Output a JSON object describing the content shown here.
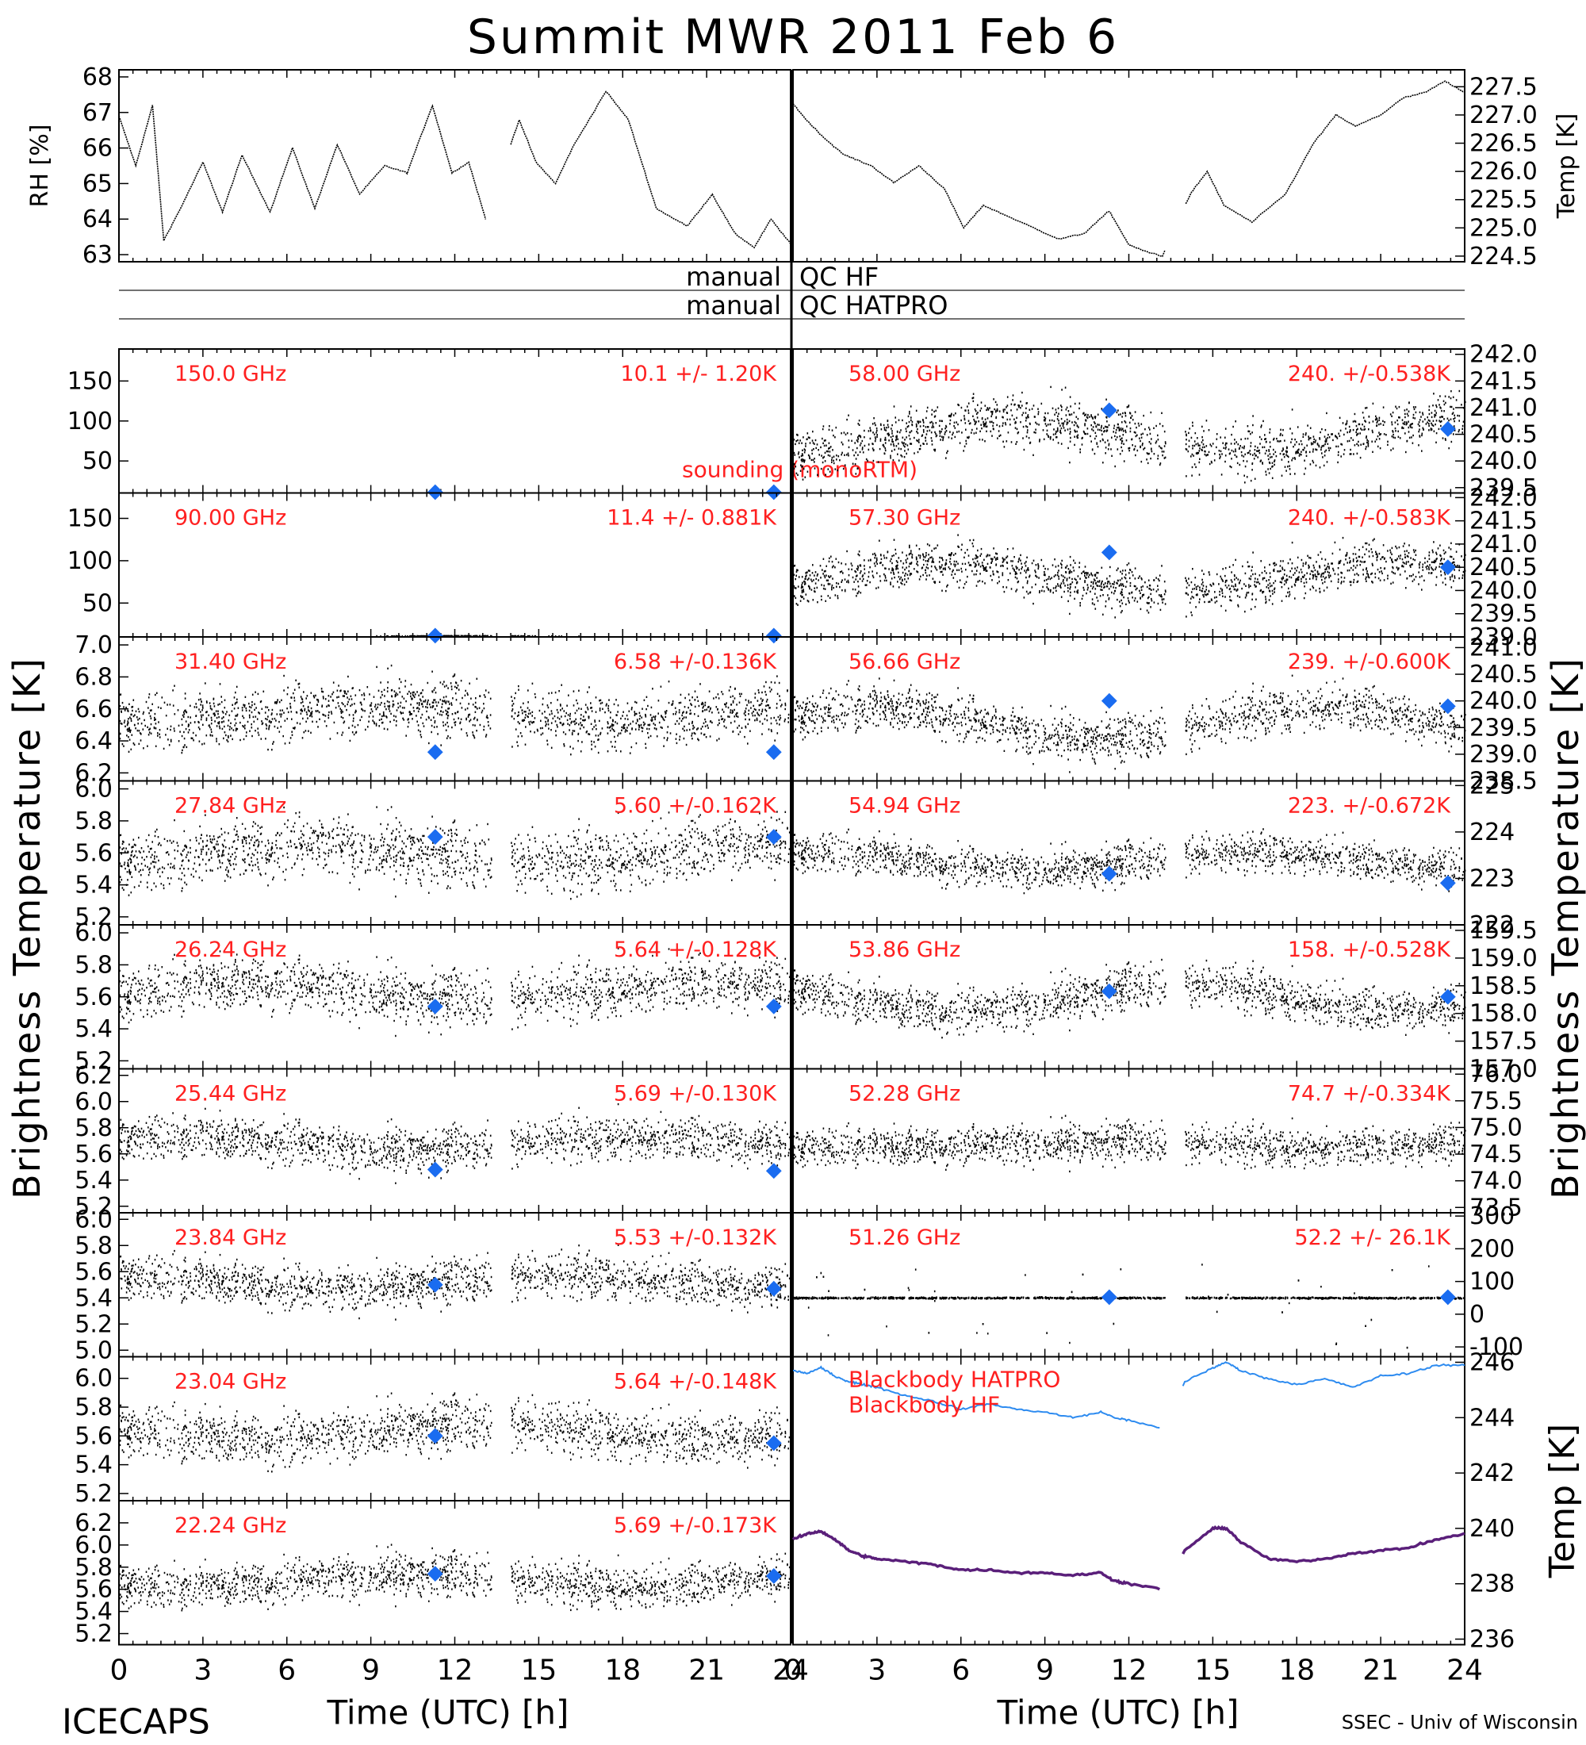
{
  "title": "Summit MWR 2011 Feb  6",
  "footer": {
    "left": "ICECAPS",
    "right": "SSEC - Univ of Wisconsin"
  },
  "x_axis": {
    "label": "Time (UTC) [h]",
    "ticks": [
      0,
      3,
      6,
      9,
      12,
      15,
      18,
      21,
      24
    ],
    "range": [
      0,
      24
    ]
  },
  "left_axis_label": "Brightness Temperature [K]",
  "right_axis_label": "Brightness Temperature [K]",
  "qc": {
    "hf_left": "manual",
    "hf_right": "QC HF",
    "hatpro_left": "manual",
    "hatpro_right": "QC HATPRO"
  },
  "colors": {
    "data": "#000000",
    "marker": "#1a6cf0",
    "annotation": "#ff2020",
    "hatpro": "#2d8bf0",
    "hf": "#5a1f7a"
  },
  "chart_data": [
    {
      "id": "rh",
      "type": "line",
      "ylabel": "RH [%]",
      "ylim": [
        62.8,
        68.2
      ],
      "ticks": [
        63,
        64,
        65,
        66,
        67,
        68
      ],
      "tick_labels": [
        "63",
        "64",
        "65",
        "66",
        "67",
        "68"
      ],
      "x": [
        0,
        0.6,
        1.2,
        1.6,
        2.2,
        3,
        3.7,
        4.4,
        5.4,
        6.2,
        7,
        7.8,
        8.6,
        9.5,
        10.3,
        11.2,
        11.9,
        12.5,
        13.1,
        14.3,
        14.9,
        15.6,
        16.2,
        17.4,
        18.2,
        19.2,
        20.3,
        21.2,
        22,
        22.7,
        23.3,
        24
      ],
      "y": [
        66.9,
        65.5,
        67.2,
        63.4,
        64.3,
        65.6,
        64.2,
        65.8,
        64.2,
        66.0,
        64.3,
        66.1,
        64.7,
        65.5,
        65.3,
        67.2,
        65.3,
        65.6,
        64.0,
        66.8,
        65.6,
        65.0,
        66.0,
        67.6,
        66.8,
        64.3,
        63.8,
        64.7,
        63.6,
        63.2,
        64.0,
        63.3
      ],
      "gaps": [
        [
          13.2,
          13.9
        ]
      ]
    },
    {
      "id": "temp",
      "type": "line",
      "ylabel": "Temp [K]",
      "ylim": [
        224.4,
        227.8
      ],
      "ticks": [
        224.5,
        225,
        225.5,
        226,
        226.5,
        227,
        227.5
      ],
      "tick_labels": [
        "224.5",
        "225.0",
        "225.5",
        "226.0",
        "226.5",
        "227.0",
        "227.5"
      ],
      "x": [
        0,
        0.5,
        1.1,
        1.8,
        2.8,
        3.6,
        4.5,
        5.4,
        6.1,
        6.8,
        7.7,
        8.6,
        9.5,
        10.4,
        11.3,
        12,
        12.5,
        13.2,
        14.2,
        14.8,
        15.4,
        16.4,
        17.6,
        18.6,
        19.4,
        20.1,
        21,
        21.8,
        22.6,
        23.3,
        24
      ],
      "y": [
        227.2,
        226.9,
        226.6,
        226.3,
        226.1,
        225.8,
        226.1,
        225.7,
        225.0,
        225.4,
        225.2,
        225.0,
        224.8,
        224.9,
        225.3,
        224.7,
        224.6,
        224.5,
        225.6,
        226.0,
        225.4,
        225.1,
        225.6,
        226.5,
        227.0,
        226.8,
        227.0,
        227.3,
        227.4,
        227.6,
        227.4
      ],
      "gaps": [
        [
          13.3,
          14.0
        ]
      ]
    },
    {
      "id": "150",
      "side": "left",
      "type": "scatter",
      "label": "150.0 GHz",
      "stat": "10.1 +/-  1.20K",
      "extra_label": "sounding (monoRTM)",
      "ylim": [
        10,
        190
      ],
      "ticks": [
        50,
        100,
        150
      ],
      "tick_labels": [
        "50",
        "100",
        "150"
      ],
      "base": 11,
      "amp": 0.6,
      "noise": 0.6,
      "markers": [
        [
          11.3,
          11
        ],
        [
          23.4,
          11
        ]
      ]
    },
    {
      "id": "90",
      "side": "left",
      "type": "scatter",
      "label": "90.00 GHz",
      "stat": "11.4 +/- 0.881K",
      "ylim": [
        10,
        180
      ],
      "ticks": [
        50,
        100,
        150
      ],
      "tick_labels": [
        "50",
        "100",
        "150"
      ],
      "base": 11.4,
      "amp": 0.6,
      "noise": 0.6,
      "markers": [
        [
          11.3,
          11.5
        ],
        [
          23.4,
          11.5
        ]
      ]
    },
    {
      "id": "31.40",
      "side": "left",
      "type": "scatter",
      "label": "31.40 GHz",
      "stat": "6.58 +/-0.136K",
      "ylim": [
        6.15,
        7.05
      ],
      "ticks": [
        6.2,
        6.4,
        6.6,
        6.8,
        7.0
      ],
      "tick_labels": [
        "6.2",
        "6.4",
        "6.6",
        "6.8",
        "7.0"
      ],
      "base": 6.58,
      "amp": 0.05,
      "noise": 0.3,
      "markers": [
        [
          11.3,
          6.33
        ],
        [
          23.4,
          6.33
        ]
      ]
    },
    {
      "id": "27.84",
      "side": "left",
      "type": "scatter",
      "label": "27.84 GHz",
      "stat": "5.60 +/-0.162K",
      "ylim": [
        5.15,
        6.05
      ],
      "ticks": [
        5.2,
        5.4,
        5.6,
        5.8,
        6.0
      ],
      "tick_labels": [
        "5.2",
        "5.4",
        "5.6",
        "5.8",
        "6.0"
      ],
      "base": 5.6,
      "amp": 0.05,
      "noise": 0.32,
      "markers": [
        [
          11.3,
          5.7
        ],
        [
          23.4,
          5.7
        ]
      ]
    },
    {
      "id": "26.24",
      "side": "left",
      "type": "scatter",
      "label": "26.24 GHz",
      "stat": "5.64 +/-0.128K",
      "ylim": [
        5.15,
        6.05
      ],
      "ticks": [
        5.2,
        5.4,
        5.6,
        5.8,
        6.0
      ],
      "tick_labels": [
        "5.2",
        "5.4",
        "5.6",
        "5.8",
        "6.0"
      ],
      "base": 5.64,
      "amp": 0.05,
      "noise": 0.28,
      "markers": [
        [
          11.3,
          5.54
        ],
        [
          23.4,
          5.54
        ]
      ]
    },
    {
      "id": "25.44",
      "side": "left",
      "type": "scatter",
      "label": "25.44 GHz",
      "stat": "5.69 +/-0.130K",
      "ylim": [
        5.15,
        6.25
      ],
      "ticks": [
        5.2,
        5.4,
        5.6,
        5.8,
        6.0,
        6.2
      ],
      "tick_labels": [
        "5.2",
        "5.4",
        "5.6",
        "5.8",
        "6.0",
        "6.2"
      ],
      "base": 5.69,
      "amp": 0.05,
      "noise": 0.28,
      "markers": [
        [
          11.3,
          5.48
        ],
        [
          23.4,
          5.47
        ]
      ]
    },
    {
      "id": "23.84",
      "side": "left",
      "type": "scatter",
      "label": "23.84 GHz",
      "stat": "5.53 +/-0.132K",
      "ylim": [
        4.95,
        6.05
      ],
      "ticks": [
        5.0,
        5.2,
        5.4,
        5.6,
        5.8,
        6.0
      ],
      "tick_labels": [
        "5.0",
        "5.2",
        "5.4",
        "5.6",
        "5.8",
        "6.0"
      ],
      "base": 5.53,
      "amp": 0.05,
      "noise": 0.28,
      "markers": [
        [
          11.3,
          5.5
        ],
        [
          23.4,
          5.47
        ]
      ]
    },
    {
      "id": "23.04",
      "side": "left",
      "type": "scatter",
      "label": "23.04 GHz",
      "stat": "5.64 +/-0.148K",
      "ylim": [
        5.15,
        6.15
      ],
      "ticks": [
        5.2,
        5.4,
        5.6,
        5.8,
        6.0
      ],
      "tick_labels": [
        "5.2",
        "5.4",
        "5.6",
        "5.8",
        "6.0"
      ],
      "base": 5.64,
      "amp": 0.06,
      "noise": 0.3,
      "markers": [
        [
          11.3,
          5.6
        ],
        [
          23.4,
          5.55
        ]
      ]
    },
    {
      "id": "22.24",
      "side": "left",
      "type": "scatter",
      "label": "22.24 GHz",
      "stat": "5.69 +/-0.173K",
      "ylim": [
        5.1,
        6.4
      ],
      "ticks": [
        5.2,
        5.4,
        5.6,
        5.8,
        6.0,
        6.2
      ],
      "tick_labels": [
        "5.2",
        "5.4",
        "5.6",
        "5.8",
        "6.0",
        "6.2"
      ],
      "base": 5.69,
      "amp": 0.06,
      "noise": 0.32,
      "markers": [
        [
          11.3,
          5.74
        ],
        [
          23.4,
          5.72
        ]
      ]
    },
    {
      "id": "58.00",
      "side": "right",
      "type": "scatter",
      "label": "58.00 GHz",
      "stat": "240. +/-0.538K",
      "ylim": [
        239.4,
        242.1
      ],
      "ticks": [
        239.5,
        240,
        240.5,
        241,
        241.5,
        242
      ],
      "tick_labels": [
        "239.5",
        "240.0",
        "240.5",
        "241.0",
        "241.5",
        "242.0"
      ],
      "base": 240.5,
      "amp": 0.3,
      "noise": 0.8,
      "markers": [
        [
          11.3,
          240.95
        ],
        [
          23.4,
          240.6
        ]
      ]
    },
    {
      "id": "57.30",
      "side": "right",
      "type": "scatter",
      "label": "57.30 GHz",
      "stat": "240. +/-0.583K",
      "ylim": [
        239,
        242.1
      ],
      "ticks": [
        239,
        239.5,
        240,
        240.5,
        241,
        241.5,
        242
      ],
      "tick_labels": [
        "239.0",
        "239.5",
        "240.0",
        "240.5",
        "241.0",
        "241.5",
        "242.0"
      ],
      "base": 240.3,
      "amp": 0.3,
      "noise": 0.8,
      "markers": [
        [
          11.3,
          240.82
        ],
        [
          23.4,
          240.5
        ]
      ]
    },
    {
      "id": "56.66",
      "side": "right",
      "type": "scatter",
      "label": "56.66 GHz",
      "stat": "239. +/-0.600K",
      "ylim": [
        238.5,
        241.2
      ],
      "ticks": [
        238.5,
        239,
        239.5,
        240,
        240.5,
        241
      ],
      "tick_labels": [
        "238.5",
        "239.0",
        "239.5",
        "240.0",
        "240.5",
        "241.0"
      ],
      "base": 239.6,
      "amp": 0.3,
      "noise": 0.7,
      "markers": [
        [
          11.3,
          240.0
        ],
        [
          23.4,
          239.9
        ]
      ]
    },
    {
      "id": "54.94",
      "side": "right",
      "type": "scatter",
      "label": "54.94 GHz",
      "stat": "223. +/-0.672K",
      "ylim": [
        222,
        225.1
      ],
      "ticks": [
        222,
        223,
        224,
        225
      ],
      "tick_labels": [
        "222",
        "223",
        "224",
        "225"
      ],
      "base": 223.4,
      "amp": 0.2,
      "noise": 0.7,
      "markers": [
        [
          11.3,
          223.1
        ],
        [
          23.4,
          222.9
        ]
      ]
    },
    {
      "id": "53.86",
      "side": "right",
      "type": "scatter",
      "label": "53.86 GHz",
      "stat": "158. +/-0.528K",
      "ylim": [
        157,
        159.6
      ],
      "ticks": [
        157,
        157.5,
        158,
        158.5,
        159,
        159.5
      ],
      "tick_labels": [
        "157.0",
        "157.5",
        "158.0",
        "158.5",
        "159.0",
        "159.5"
      ],
      "base": 158.3,
      "amp": 0.25,
      "noise": 0.65,
      "markers": [
        [
          11.3,
          158.4
        ],
        [
          23.4,
          158.3
        ]
      ]
    },
    {
      "id": "52.28",
      "side": "right",
      "type": "scatter",
      "label": "52.28 GHz",
      "stat": "74.7 +/-0.334K",
      "ylim": [
        73.4,
        76.1
      ],
      "ticks": [
        73.5,
        74,
        74.5,
        75,
        75.5,
        76
      ],
      "tick_labels": [
        "73.5",
        "74.0",
        "74.5",
        "75.0",
        "75.5",
        "76.0"
      ],
      "base": 74.7,
      "amp": 0.05,
      "noise": 0.6,
      "markers": []
    },
    {
      "id": "51.26",
      "side": "right",
      "type": "scatter",
      "label": "51.26 GHz",
      "stat": "52.2 +/- 26.1K",
      "ylim": [
        -130,
        310
      ],
      "ticks": [
        -100,
        0,
        100,
        200,
        300
      ],
      "tick_labels": [
        "-100",
        "0",
        "100",
        "200",
        "300"
      ],
      "base": 52.2,
      "amp": 0,
      "noise": 4,
      "outliers": true,
      "markers": [
        [
          11.3,
          52
        ],
        [
          23.4,
          52
        ]
      ]
    },
    {
      "id": "blackbody",
      "side": "right",
      "type": "line",
      "ylabel": "Temp [K]",
      "ylim": [
        235.8,
        246.2
      ],
      "ticks": [
        236,
        238,
        240,
        242,
        244,
        246
      ],
      "tick_labels": [
        "236",
        "238",
        "240",
        "242",
        "244",
        "246"
      ],
      "series": [
        {
          "name": "Blackbody HATPRO",
          "color": "#2d8bf0",
          "x": [
            0,
            0.5,
            1,
            1.5,
            2,
            2.5,
            3,
            4,
            5,
            6,
            7,
            8,
            9,
            10,
            11,
            11.5,
            12,
            13.2,
            14,
            15,
            15.5,
            16,
            17,
            18,
            19,
            20,
            21,
            22,
            23,
            24
          ],
          "y": [
            245.7,
            245.6,
            245.8,
            245.5,
            245.3,
            245.2,
            245.1,
            244.8,
            244.6,
            244.3,
            244.5,
            244.3,
            244.2,
            244.0,
            244.2,
            244.0,
            243.9,
            243.6,
            245.3,
            245.8,
            246.0,
            245.7,
            245.4,
            245.2,
            245.4,
            245.1,
            245.5,
            245.6,
            245.9,
            245.9
          ]
        },
        {
          "name": "Blackbody HF",
          "color": "#5a1f7a",
          "x": [
            0,
            0.5,
            1,
            1.5,
            2,
            2.5,
            3,
            4,
            5,
            6,
            7,
            8,
            9,
            10,
            11,
            11.5,
            12,
            13.2,
            14,
            15,
            15.5,
            16,
            17,
            18,
            19,
            20,
            21,
            22,
            23,
            24
          ],
          "y": [
            239.6,
            239.8,
            239.9,
            239.6,
            239.2,
            239.0,
            238.9,
            238.8,
            238.7,
            238.5,
            238.5,
            238.4,
            238.4,
            238.3,
            238.4,
            238.1,
            238.0,
            237.8,
            239.2,
            240.0,
            240.0,
            239.5,
            238.9,
            238.8,
            238.9,
            239.1,
            239.2,
            239.3,
            239.6,
            239.8
          ]
        }
      ],
      "gaps": [
        [
          13.2,
          13.9
        ]
      ]
    }
  ]
}
